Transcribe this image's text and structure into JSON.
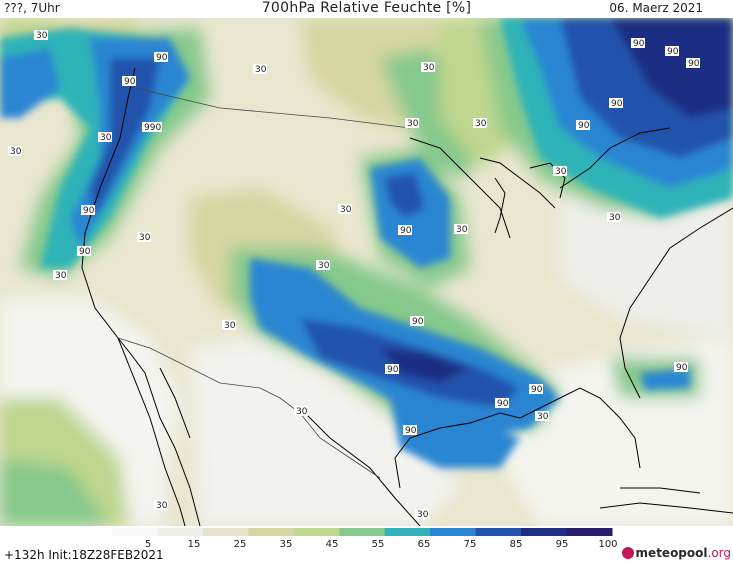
{
  "header": {
    "left": "???, 7Uhr",
    "title": "700hPa Relative Feuchte [%]",
    "date": "06. Maerz 2021"
  },
  "footer": {
    "run": "+132h  Init:18Z28FEB2021",
    "brand_name": "meteopool",
    "brand_tld": ".org"
  },
  "legend": {
    "ticks": [
      "5",
      "15",
      "25",
      "35",
      "45",
      "55",
      "65",
      "75",
      "85",
      "95",
      "100"
    ],
    "colors": [
      "#f8f8f8",
      "#eeeeea",
      "#e6e4cc",
      "#d6d6a2",
      "#bfd68e",
      "#86c98c",
      "#2fb3b8",
      "#2a86d2",
      "#2453ac",
      "#1d2e84",
      "#261b6a"
    ]
  },
  "map": {
    "region": "North America",
    "contour_labels": [
      "30",
      "90",
      "30",
      "90",
      "30",
      "30",
      "30",
      "90",
      "90",
      "90",
      "30",
      "30",
      "90",
      "90",
      "30",
      "990",
      "30",
      "90",
      "30",
      "30",
      "90",
      "30",
      "30",
      "30",
      "90",
      "30",
      "90",
      "90",
      "90",
      "30",
      "90",
      "90",
      "30",
      "30",
      "90",
      "30",
      "30",
      "30",
      "30"
    ]
  }
}
